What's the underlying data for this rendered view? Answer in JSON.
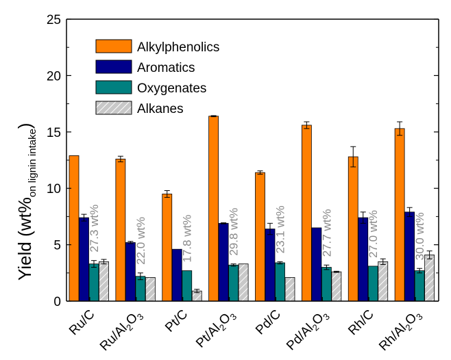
{
  "chart_data": {
    "type": "bar",
    "ylabel_main": "Yield (wt%",
    "ylabel_sub": "on lignin intake",
    "ylabel_end": ")",
    "ylim": [
      0,
      25
    ],
    "yticks": [
      0,
      5,
      10,
      15,
      20,
      25
    ],
    "categories": [
      {
        "main": "Ru/C",
        "sub": "",
        "rest": ""
      },
      {
        "main": "Ru/Al",
        "sub": "2",
        "rest": "O",
        "sub2": "3"
      },
      {
        "main": "Pt/C",
        "sub": "",
        "rest": ""
      },
      {
        "main": "Pt/Al",
        "sub": "2",
        "rest": "O",
        "sub2": "3"
      },
      {
        "main": "Pd/C",
        "sub": "",
        "rest": ""
      },
      {
        "main": "Pd/Al",
        "sub": "2",
        "rest": "O",
        "sub2": "3"
      },
      {
        "main": "Rh/C",
        "sub": "",
        "rest": ""
      },
      {
        "main": "Rh/Al",
        "sub": "2",
        "rest": "O",
        "sub2": "3"
      }
    ],
    "series": [
      {
        "name": "Alkylphenolics",
        "color": "#ff7f00",
        "pattern": "solid",
        "values": [
          12.9,
          12.6,
          9.5,
          16.4,
          11.4,
          15.6,
          12.8,
          15.3
        ],
        "errors": [
          0.0,
          0.25,
          0.3,
          0.05,
          0.15,
          0.3,
          0.9,
          0.6
        ]
      },
      {
        "name": "Aromatics",
        "color": "#00008b",
        "pattern": "solid",
        "values": [
          7.4,
          5.2,
          4.6,
          6.9,
          6.4,
          6.5,
          7.4,
          7.9
        ],
        "errors": [
          0.3,
          0.1,
          0.0,
          0.05,
          0.5,
          0.0,
          0.5,
          0.4
        ]
      },
      {
        "name": "Oxygenates",
        "color": "#008080",
        "pattern": "solid",
        "values": [
          3.3,
          2.2,
          2.7,
          3.2,
          3.4,
          3.0,
          3.1,
          2.7
        ],
        "errors": [
          0.3,
          0.3,
          0.0,
          0.1,
          0.1,
          0.2,
          0.0,
          0.2
        ]
      },
      {
        "name": "Alkanes",
        "color": "#c8c8c8",
        "pattern": "hatch",
        "values": [
          3.5,
          2.1,
          0.9,
          3.3,
          2.1,
          2.6,
          3.5,
          4.1
        ],
        "errors": [
          0.2,
          0.0,
          0.15,
          0.0,
          0.0,
          0.05,
          0.25,
          0.35
        ]
      }
    ],
    "totals": [
      "27.3 wt%",
      "22.0 wt%",
      "17.8 wt%",
      "29.8 wt%",
      "23.1 wt%",
      "27.7 wt%",
      "27.0 wt%",
      "30.0 wt%"
    ],
    "legend_position": "top-left",
    "grid": false
  }
}
